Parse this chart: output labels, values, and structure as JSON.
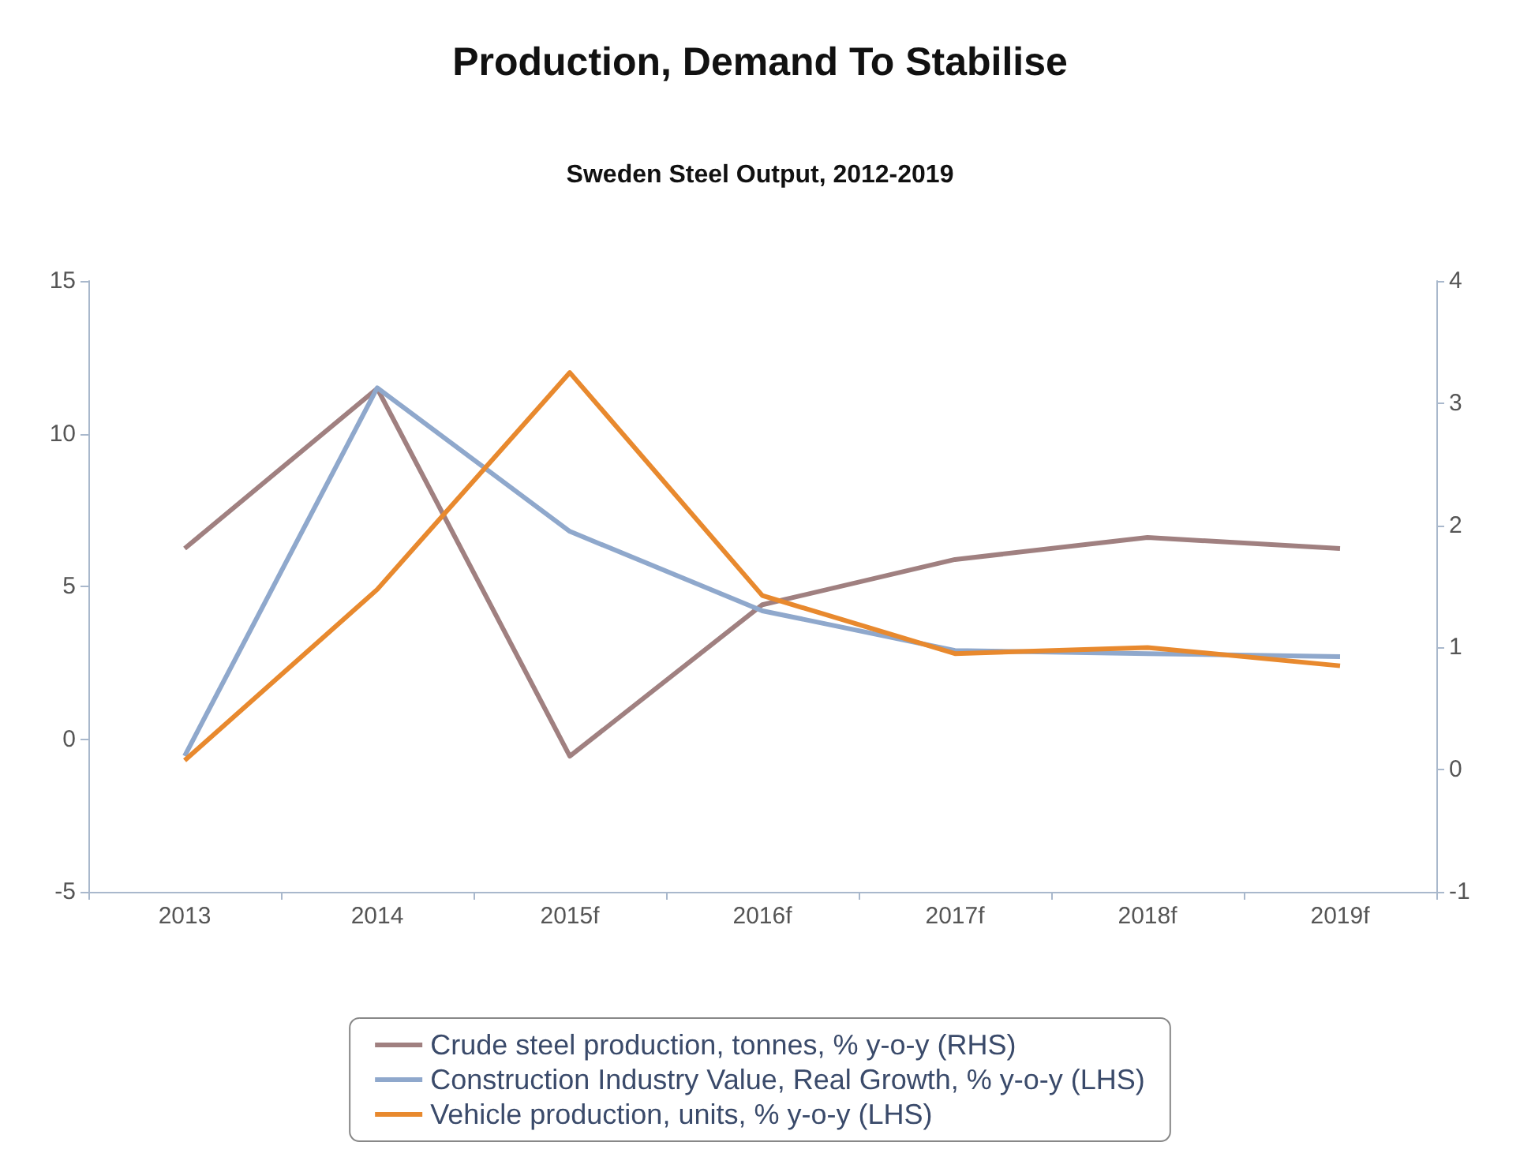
{
  "chart_data": {
    "type": "line",
    "title": "Production, Demand To Stabilise",
    "subtitle": "Sweden Steel Output, 2012-2019",
    "categories": [
      "2013",
      "2014",
      "2015f",
      "2016f",
      "2017f",
      "2018f",
      "2019f"
    ],
    "series": [
      {
        "name": "Crude steel production, tonnes, % y-o-y (RHS)",
        "color": "#a08080",
        "axis": "y2",
        "values": [
          1.81,
          3.12,
          0.11,
          1.35,
          1.72,
          1.9,
          1.81
        ]
      },
      {
        "name": "Construction Industry Value, Real Growth, % y-o-y (LHS)",
        "color": "#8fa8cc",
        "values": [
          -0.55,
          11.5,
          6.8,
          4.2,
          2.9,
          2.8,
          2.7
        ]
      },
      {
        "name": "Vehicle production, units, % y-o-y (LHS)",
        "color": "#e8892e",
        "values": [
          -0.7,
          4.9,
          12.0,
          4.7,
          2.8,
          3.0,
          2.4
        ]
      }
    ],
    "ylim": [
      -5,
      15
    ],
    "yticks": [
      -5,
      0,
      5,
      10,
      15
    ],
    "y2lim": [
      -1,
      4
    ],
    "y2ticks": [
      -1,
      0,
      1,
      2,
      3,
      4
    ],
    "grid": false,
    "legend": "bottom",
    "marker": "none",
    "line_style": "solid"
  }
}
